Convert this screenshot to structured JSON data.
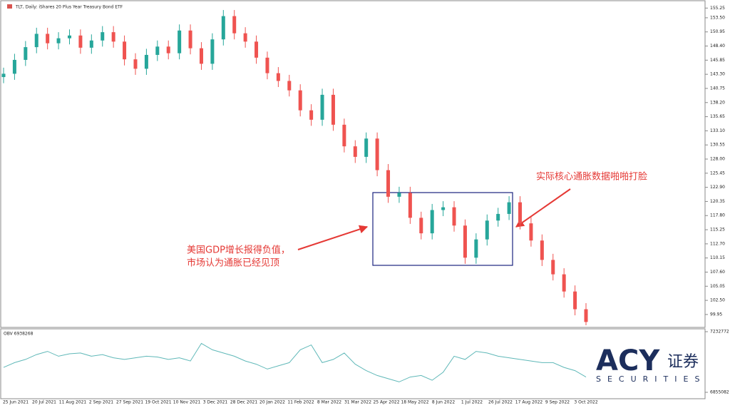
{
  "chart_data": [
    {
      "type": "candlestick",
      "title": "TLT, Daily: iShares 20 Plus Year Treasury Bond ETF",
      "up_color": "#26a69a",
      "down_color": "#ef5350",
      "ylim": [
        97.75,
        156.45
      ],
      "yticks": [
        {
          "value": 155.25,
          "label": "155.25"
        },
        {
          "value": 153.5,
          "label": "153.50"
        },
        150.95,
        {
          "value": 148.4,
          "label": "148.40"
        },
        145.85,
        {
          "value": 143.3,
          "label": "143.30"
        },
        140.75,
        {
          "value": 138.2,
          "label": "138.20"
        },
        135.65,
        {
          "value": 133.1,
          "label": "133.10"
        },
        130.55,
        {
          "value": 128.0,
          "label": "128.00"
        },
        125.45,
        {
          "value": 122.9,
          "label": "122.90"
        },
        120.35,
        {
          "value": 117.8,
          "label": "117.80"
        },
        115.25,
        {
          "value": 112.7,
          "label": "112.70"
        },
        110.15,
        {
          "value": 107.6,
          "label": "107.60"
        },
        105.05,
        {
          "value": 102.5,
          "label": "102.50"
        },
        99.95
      ],
      "x_labels": [
        "25 Jun 2021",
        "20 Jul 2021",
        "11 Aug 2021",
        "2 Sep 2021",
        "27 Sep 2021",
        "19 Oct 2021",
        "10 Nov 2021",
        "3 Dec 2021",
        "28 Dec 2021",
        "20 Jan 2022",
        "11 Feb 2022",
        "8 Mar 2022",
        "31 Mar 2022",
        "25 Apr 2022",
        "18 May 2022",
        "8 Jun 2022",
        "1 Jul 2022",
        "26 Jul 2022",
        "17 Aug 2022",
        "9 Sep 2022",
        "3 Oct 2022"
      ],
      "open": [
        142.8,
        143.4,
        145.9,
        148.2,
        150.6,
        148.9,
        149.8,
        150.3,
        148.1,
        149.4,
        150.9,
        149.2,
        146.0,
        144.3,
        146.8,
        148.3,
        147.1,
        151.2,
        148.0,
        145.2,
        149.6,
        153.8,
        150.7,
        149.2,
        146.3,
        143.5,
        142.1,
        140.4,
        136.8,
        135.1,
        139.6,
        134.2,
        130.3,
        128.4,
        131.7,
        126.0,
        121.2,
        121.9,
        117.4,
        114.6,
        118.8,
        119.3,
        116.0,
        110.2,
        113.5,
        116.9,
        118.1,
        120.2,
        116.4,
        113.3,
        109.8,
        107.2,
        104.1,
        100.9
      ],
      "high": [
        144.5,
        147.0,
        149.3,
        151.7,
        151.7,
        150.9,
        151.4,
        151.4,
        150.5,
        152.0,
        152.0,
        150.3,
        147.1,
        147.9,
        149.4,
        149.4,
        152.3,
        152.3,
        149.1,
        150.7,
        154.9,
        154.9,
        151.8,
        150.3,
        147.4,
        144.6,
        143.2,
        141.5,
        137.9,
        140.7,
        140.7,
        135.3,
        131.4,
        132.8,
        132.8,
        127.1,
        123.0,
        123.0,
        118.5,
        119.9,
        120.4,
        120.4,
        117.1,
        114.6,
        118.0,
        119.2,
        121.3,
        121.3,
        117.5,
        114.4,
        110.9,
        108.3,
        105.2,
        102.0
      ],
      "low": [
        141.7,
        142.3,
        144.8,
        147.1,
        147.8,
        147.8,
        148.7,
        147.0,
        147.0,
        148.3,
        148.1,
        144.9,
        143.2,
        143.2,
        145.7,
        146.0,
        146.0,
        146.9,
        144.1,
        144.1,
        148.5,
        149.6,
        148.1,
        145.2,
        142.4,
        141.0,
        139.3,
        135.7,
        134.0,
        134.0,
        133.1,
        129.2,
        127.3,
        127.3,
        124.9,
        120.1,
        120.1,
        116.3,
        113.5,
        113.5,
        117.7,
        114.9,
        109.1,
        109.1,
        112.4,
        115.8,
        117.0,
        115.3,
        112.2,
        108.7,
        106.1,
        103.0,
        99.8,
        98.0
      ],
      "close": [
        143.4,
        145.9,
        148.2,
        150.6,
        148.9,
        149.8,
        150.3,
        148.1,
        149.4,
        150.9,
        149.2,
        146.0,
        144.3,
        146.8,
        148.3,
        147.1,
        151.2,
        148.0,
        145.2,
        149.6,
        153.8,
        150.7,
        149.2,
        146.3,
        143.5,
        142.1,
        140.4,
        136.8,
        135.1,
        139.6,
        134.2,
        130.3,
        128.4,
        131.7,
        126.0,
        121.2,
        121.9,
        117.4,
        114.6,
        118.8,
        119.3,
        116.0,
        110.2,
        113.5,
        116.9,
        118.1,
        120.2,
        116.4,
        113.3,
        109.8,
        107.2,
        104.1,
        100.9,
        98.6
      ],
      "annotations": [
        "美国GDP增长报得负值，",
        "市场认为通胀已经见顶",
        "实际核心通胀数据啪啪打脸"
      ]
    },
    {
      "type": "line",
      "title": "OBV 6938268",
      "color": "#5fb8b8",
      "ylim": [
        6855082,
        7232772
      ],
      "yticks": [
        7232772,
        6855082
      ],
      "values": [
        7010000,
        7040000,
        7060000,
        7090000,
        7110000,
        7080000,
        7095000,
        7100000,
        7080000,
        7090000,
        7070000,
        7060000,
        7070000,
        7080000,
        7075000,
        7060000,
        7070000,
        7050000,
        7160000,
        7120000,
        7100000,
        7080000,
        7050000,
        7030000,
        7000000,
        7020000,
        7040000,
        7120000,
        7150000,
        7040000,
        7060000,
        7100000,
        7030000,
        6990000,
        6960000,
        6940000,
        6920000,
        6950000,
        6960000,
        6930000,
        6980000,
        7080000,
        7060000,
        7110000,
        7100000,
        7080000,
        7070000,
        7060000,
        7050000,
        7040000,
        7040000,
        7010000,
        6990000,
        6950000
      ]
    }
  ],
  "logo": {
    "brand": "ACY",
    "cn": "证券",
    "sub": "SECURITIES"
  }
}
